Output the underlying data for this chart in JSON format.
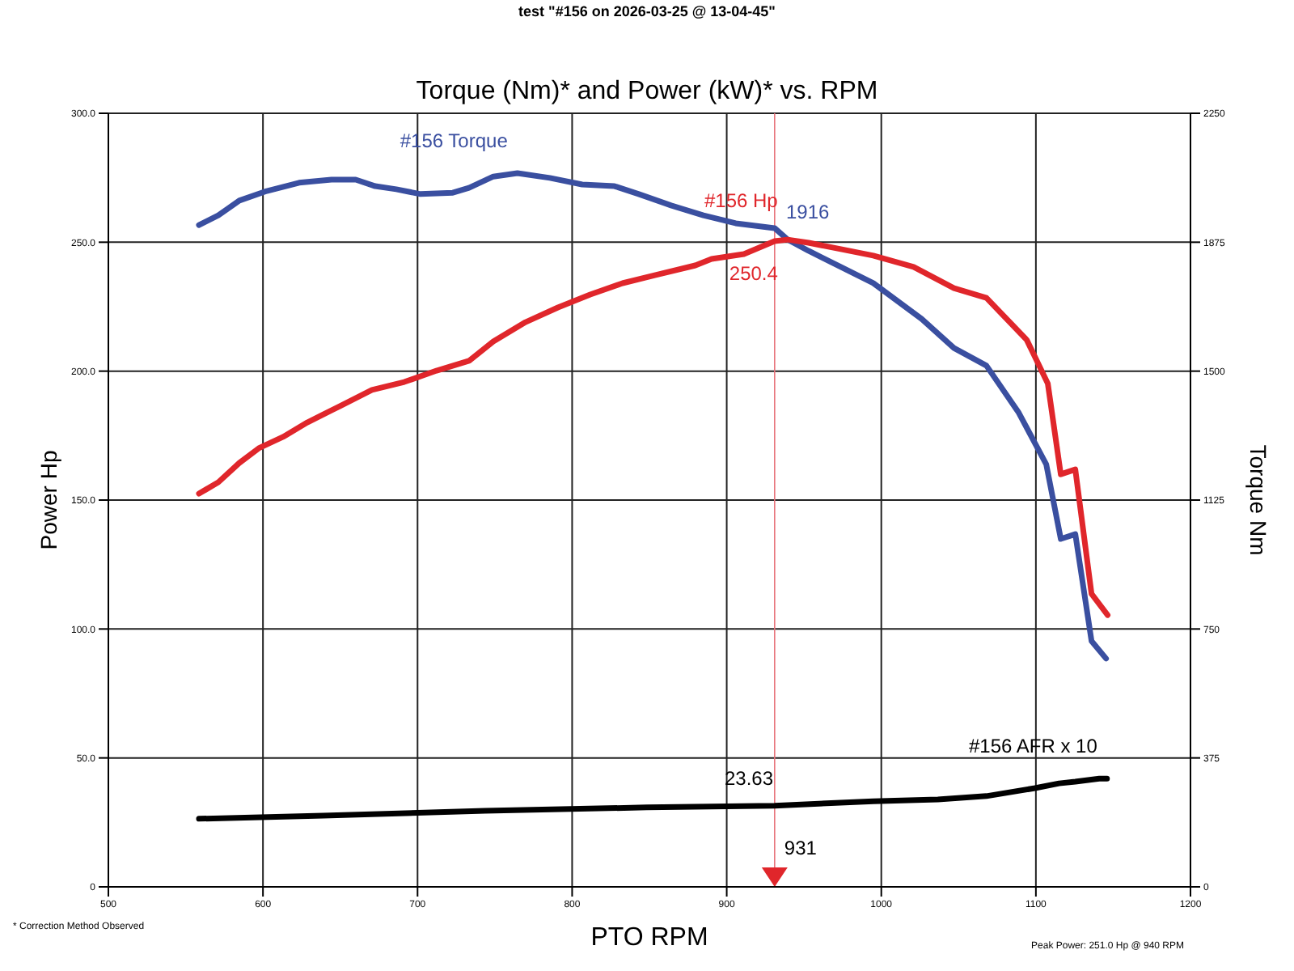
{
  "chart_data": {
    "type": "line",
    "subtitle": "test \"#156 on 2026-03-25 @ 13-04-45\"",
    "title": "Torque (Nm)* and Power (kW)* vs. RPM",
    "xlabel": "PTO RPM",
    "ylabel": "Power Hp",
    "y2label": "Torque Nm",
    "xlim": [
      500,
      1200
    ],
    "xticks": [
      500,
      600,
      700,
      800,
      900,
      1000,
      1100,
      1200
    ],
    "ylim": [
      0,
      300
    ],
    "yticks": [
      0,
      {
        "value": 50,
        "label": "50.0"
      },
      {
        "value": 100,
        "label": "100.0"
      },
      {
        "value": 150,
        "label": "150.0"
      },
      {
        "value": 200,
        "label": "200.0"
      },
      {
        "value": 250,
        "label": "250.0"
      },
      {
        "value": 300,
        "label": "300.0"
      }
    ],
    "y2lim": [
      0,
      2250
    ],
    "y2ticks": [
      0,
      375,
      750,
      1125,
      1500,
      1875,
      2250
    ],
    "grid": true,
    "legend": false,
    "marker": "none",
    "line_style": "solid",
    "series": [
      {
        "name": "#156 Torque",
        "color": "#3a4fa0",
        "axis": "y2",
        "x": [
          558.6,
          571.1,
          584.7,
          602.5,
          623.4,
          644.3,
          660,
          672.6,
          686.2,
          701.9,
          722.8,
          733.3,
          749,
          764.6,
          785.6,
          806.5,
          827.4,
          843.1,
          864,
          884.9,
          905.8,
          931,
          939.3,
          952.9,
          973.8,
          994.8,
          1026.1,
          1047,
          1068,
          1088.9,
          1106.7,
          1116.1,
          1125.5,
          1136,
          1145.4
        ],
        "values": [
          1925,
          1953,
          1996,
          2024,
          2048,
          2057,
          2057,
          2038,
          2029,
          2015,
          2019,
          2033,
          2066,
          2076,
          2062,
          2043,
          2038,
          2015,
          1982,
          1953,
          1930,
          1916,
          1883,
          1850,
          1803,
          1756,
          1652,
          1567,
          1516,
          1379,
          1229,
          1012,
          1026,
          715,
          664
        ]
      },
      {
        "name": "#156 Hp",
        "color": "#e0262b",
        "x": [
          558.6,
          571.1,
          584.7,
          597.3,
          613,
          628.7,
          649.6,
          670.5,
          691.4,
          712.3,
          733.3,
          749,
          769.9,
          790.8,
          811.7,
          832.6,
          853.5,
          879.7,
          890.2,
          911.1,
          931,
          939.3,
          952.9,
          973.8,
          994.8,
          1020.9,
          1047,
          1068,
          1094.1,
          1107.7,
          1116.1,
          1125.5,
          1136,
          1146.4
        ],
        "values": [
          152.5,
          156.9,
          164.4,
          170.1,
          174.5,
          180.1,
          186.4,
          192.7,
          195.8,
          200.2,
          204,
          211.5,
          219,
          224.7,
          229.7,
          234.1,
          237.2,
          241,
          243.5,
          245.4,
          250.4,
          251,
          249.8,
          247.3,
          244.8,
          240.4,
          232.2,
          228.4,
          212.1,
          195.2,
          160,
          161.9,
          113.6,
          105.4
        ]
      },
      {
        "name": "#156 AFR x 10",
        "color": "#000000",
        "axis": "y2",
        "x": [
          558.6,
          639,
          743.7,
          848.3,
          931,
          994.8,
          1036.6,
          1068,
          1099.4,
          1115,
          1125.5,
          1141,
          1146
        ],
        "values": [
          198,
          207,
          221,
          231,
          236,
          249,
          254,
          264,
          287,
          301,
          306,
          315,
          315
        ]
      }
    ],
    "ref_lines": [
      {
        "axis": "x",
        "value": 931,
        "label": "931",
        "color": "#e8737a"
      }
    ],
    "annotations": [
      "1916",
      {
        "text": "250.4",
        "x": 931,
        "y": 250.4
      },
      "23.63",
      "* Correction Method Observed",
      "Peak Power: 251.0 Hp @ 940 RPM"
    ]
  }
}
